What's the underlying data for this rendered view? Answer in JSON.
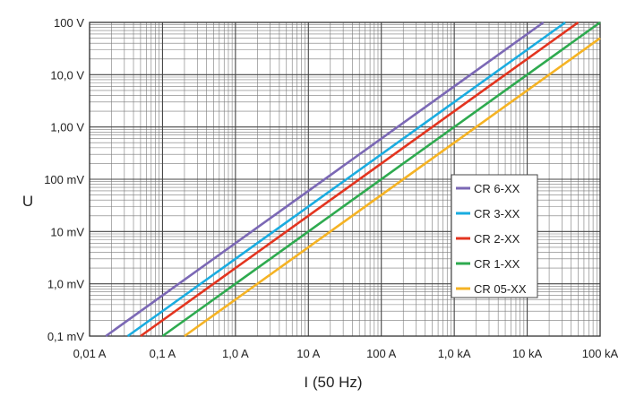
{
  "chart_data": {
    "type": "line",
    "xscale": "log",
    "yscale": "log",
    "xlabel": "I (50 Hz)",
    "ylabel": "U",
    "xlim": [
      0.01,
      100000
    ],
    "ylim": [
      0.0001,
      100
    ],
    "x_tick_labels": [
      "0,01 A",
      "0,1 A",
      "1,0 A",
      "10 A",
      "100 A",
      "1,0 kA",
      "10 kA",
      "100 kA"
    ],
    "y_tick_labels": [
      "0,1 mV",
      "1,0 mV",
      "10 mV",
      "100 mV",
      "1,00 V",
      "10,0 V",
      "100 V"
    ],
    "grid": true,
    "legend_position": "right",
    "series": [
      {
        "name": "CR 6-XX",
        "color": "#7B68B5",
        "x": [
          0.0167,
          16700
        ],
        "y": [
          0.0001,
          100
        ]
      },
      {
        "name": "CR 3-XX",
        "color": "#1AACE0",
        "x": [
          0.0333,
          33300
        ],
        "y": [
          0.0001,
          100
        ]
      },
      {
        "name": "CR 2-XX",
        "color": "#E3341F",
        "x": [
          0.05,
          50000
        ],
        "y": [
          0.0001,
          100
        ]
      },
      {
        "name": "CR 1-XX",
        "color": "#2EAA4F",
        "x": [
          0.1,
          100000
        ],
        "y": [
          0.0001,
          100
        ]
      },
      {
        "name": "CR 05-XX",
        "color": "#F5B324",
        "x": [
          0.2,
          100000
        ],
        "y": [
          0.0001,
          50
        ]
      }
    ]
  }
}
